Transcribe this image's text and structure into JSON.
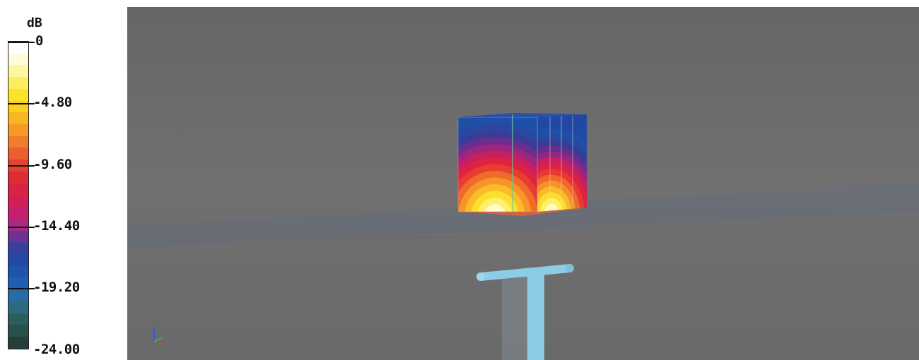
{
  "legend": {
    "title": "dB",
    "ticks": [
      "0",
      "-4.80",
      "-9.60",
      "-14.40",
      "-19.20",
      "-24.00"
    ],
    "colors": [
      "#fefefe",
      "#fefbd8",
      "#fef6a0",
      "#fdee60",
      "#fde22c",
      "#fccf20",
      "#f9b624",
      "#f59a2a",
      "#f07c2e",
      "#ea5e30",
      "#e5412f",
      "#e02c34",
      "#da2244",
      "#d21f5a",
      "#c51f6e",
      "#a62a82",
      "#6b3490",
      "#3a3f9c",
      "#2548a4",
      "#1e54aa",
      "#1f60ae",
      "#2a6aa6",
      "#2d6a80",
      "#2b5e5c",
      "#29504a",
      "#253f3a"
    ]
  },
  "scene": {
    "background": "#6e6e6e",
    "probe_color": "#8ccce6"
  }
}
